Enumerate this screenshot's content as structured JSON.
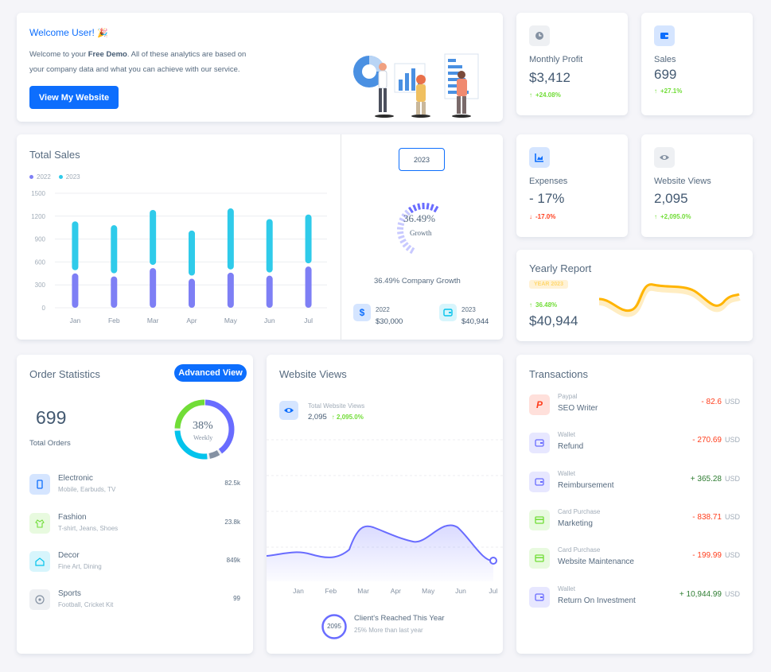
{
  "welcome": {
    "title": "Welcome User!",
    "line1_pre": "Welcome to your ",
    "line1_bold": "Free Demo",
    "line1_post": ". All of these analytics are based on",
    "line2": "your company data and what you can achieve with our service.",
    "button": "View My Website"
  },
  "stats": {
    "monthly_profit": {
      "label": "Monthly Profit",
      "value": "$3,412",
      "change": "+24.08%",
      "dir": "up",
      "icon": "clock-icon"
    },
    "sales": {
      "label": "Sales",
      "value": "699",
      "change": "+27.1%",
      "dir": "up",
      "icon": "wallet-icon"
    },
    "expenses": {
      "label": "Expenses",
      "value": "- 17%",
      "change": "-17.0%",
      "dir": "down",
      "icon": "chart-icon"
    },
    "website_views": {
      "label": "Website Views",
      "value": "2,095",
      "change": "+2,095.0%",
      "dir": "up",
      "icon": "eye-icon"
    }
  },
  "total_sales": {
    "title": "Total Sales",
    "legend": [
      "2022",
      "2023"
    ],
    "year_select": "2023",
    "growth_pct": "36.49%",
    "growth_label": "Growth",
    "company_growth": "36.49% Company Growth",
    "y2022_label": "2022",
    "y2022_value": "$30,000",
    "y2023_label": "2023",
    "y2023_value": "$40,944"
  },
  "chart_data": {
    "type": "bar",
    "categories": [
      "Jan",
      "Feb",
      "Mar",
      "Apr",
      "May",
      "Jun",
      "Jul"
    ],
    "series": [
      {
        "name": "2022",
        "values": [
          450,
          410,
          520,
          380,
          460,
          420,
          540
        ]
      },
      {
        "name": "2023",
        "values": [
          640,
          630,
          720,
          590,
          800,
          700,
          640
        ]
      }
    ],
    "yticks": [
      "0",
      "300",
      "600",
      "900",
      "1200",
      "1500"
    ],
    "ylim": [
      0,
      1500
    ],
    "colors": {
      "2022": "#7e7ff5",
      "2023": "#2fcbea"
    }
  },
  "yearly_report": {
    "title": "Yearly Report",
    "badge": "YEAR 2023",
    "change": "36.48%",
    "value": "$40,944"
  },
  "order_stats": {
    "title": "Order Statistics",
    "button": "Advanced View",
    "total": "699",
    "total_label": "Total Orders",
    "donut_pct": "38%",
    "donut_label": "Weekly",
    "items": [
      {
        "name": "Electronic",
        "sub": "Mobile, Earbuds, TV",
        "value": "82.5k"
      },
      {
        "name": "Fashion",
        "sub": "T-shirt, Jeans, Shoes",
        "value": "23.8k"
      },
      {
        "name": "Decor",
        "sub": "Fine Art, Dining",
        "value": "849k"
      },
      {
        "name": "Sports",
        "sub": "Football, Cricket Kit",
        "value": "99"
      }
    ]
  },
  "website_views": {
    "title": "Website Views",
    "total_label": "Total Website Views",
    "total_value": "2,095",
    "total_change": "2,095.0%",
    "months": [
      "Jan",
      "Feb",
      "Mar",
      "Apr",
      "May",
      "Jun",
      "Jul"
    ],
    "circle_value": "2095",
    "reached_title": "Client's Reached This Year",
    "reached_sub": "25% More than last year"
  },
  "transactions": {
    "title": "Transactions",
    "items": [
      {
        "cat": "Paypal",
        "name": "SEO Writer",
        "amount": "- 82.6",
        "currency": "USD",
        "dir": "down"
      },
      {
        "cat": "Wallet",
        "name": "Refund",
        "amount": "- 270.69",
        "currency": "USD",
        "dir": "down"
      },
      {
        "cat": "Wallet",
        "name": "Reimbursement",
        "amount": "+ 365.28",
        "currency": "USD",
        "dir": "up"
      },
      {
        "cat": "Card Purchase",
        "name": "Marketing",
        "amount": "- 838.71",
        "currency": "USD",
        "dir": "down"
      },
      {
        "cat": "Card Purchase",
        "name": "Website Maintenance",
        "amount": "- 199.99",
        "currency": "USD",
        "dir": "down"
      },
      {
        "cat": "Wallet",
        "name": "Return On Investment",
        "amount": "+ 10,944.99",
        "currency": "USD",
        "dir": "up"
      }
    ]
  }
}
